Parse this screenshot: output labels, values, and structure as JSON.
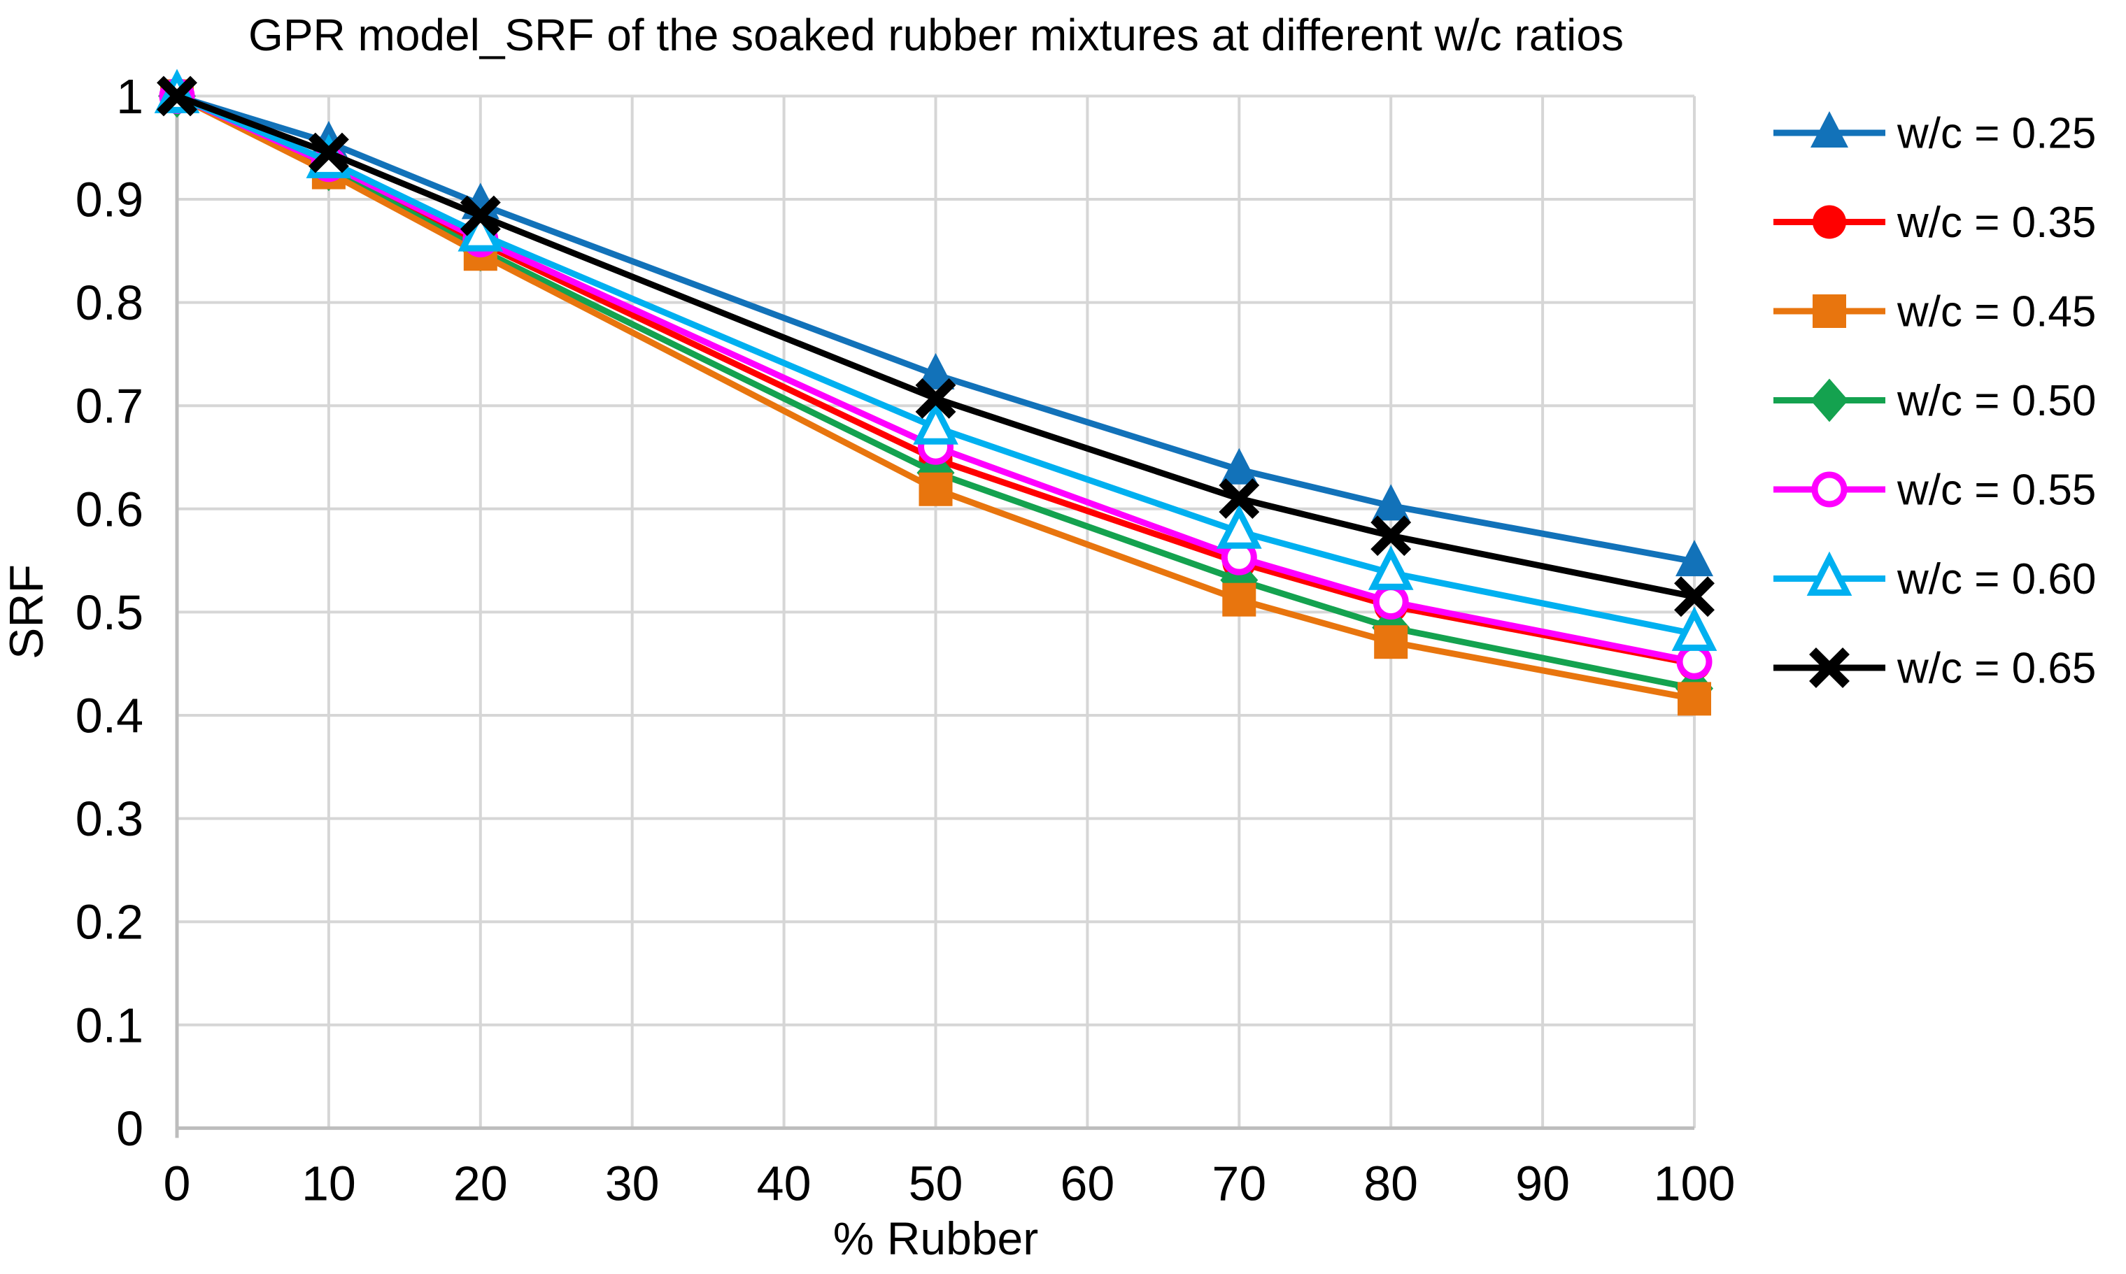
{
  "chart_data": {
    "type": "line",
    "title": "GPR model_SRF of the soaked rubber mixtures at different w/c ratios",
    "xlabel": "% Rubber",
    "ylabel": "SRF",
    "x": [
      0,
      10,
      20,
      50,
      70,
      80,
      100
    ],
    "xlim": [
      0,
      100
    ],
    "ylim": [
      0,
      1
    ],
    "x_ticks": [
      0,
      10,
      20,
      30,
      40,
      50,
      60,
      70,
      80,
      90,
      100
    ],
    "y_ticks": [
      "1",
      "0.9",
      "0.8",
      "0.7",
      "0.6",
      "0.5",
      "0.4",
      "0.3",
      "0.2",
      "0.1",
      "0"
    ],
    "grid": true,
    "legend_position": "right",
    "series": [
      {
        "name": "w/c = 0.25",
        "color": "#1272B9",
        "marker": "triangle-filled",
        "values": [
          1,
          0.955,
          0.895,
          0.73,
          0.638,
          0.603,
          0.549
        ]
      },
      {
        "name": "w/c = 0.35",
        "color": "#FF0000",
        "marker": "circle-filled",
        "values": [
          1,
          0.932,
          0.858,
          0.648,
          0.548,
          0.506,
          0.45
        ]
      },
      {
        "name": "w/c = 0.45",
        "color": "#E8750E",
        "marker": "square-filled",
        "values": [
          1,
          0.926,
          0.847,
          0.619,
          0.512,
          0.471,
          0.416
        ]
      },
      {
        "name": "w/c = 0.50",
        "color": "#14A24F",
        "marker": "diamond-filled",
        "values": [
          1,
          0.929,
          0.851,
          0.635,
          0.531,
          0.485,
          0.426
        ]
      },
      {
        "name": "w/c = 0.55",
        "color": "#FF00FF",
        "marker": "circle-open",
        "values": [
          1,
          0.934,
          0.861,
          0.66,
          0.553,
          0.51,
          0.452
        ]
      },
      {
        "name": "w/c = 0.60",
        "color": "#00B0F0",
        "marker": "triangle-open",
        "values": [
          1,
          0.937,
          0.866,
          0.679,
          0.578,
          0.538,
          0.479
        ]
      },
      {
        "name": "w/c = 0.65",
        "color": "#000000",
        "marker": "x",
        "values": [
          1,
          0.945,
          0.884,
          0.707,
          0.61,
          0.574,
          0.515
        ]
      }
    ],
    "colors": {
      "gridline": "#D6D6D6",
      "axis": "#BDBDBD",
      "text": "#000000",
      "background": "#FFFFFF"
    }
  }
}
